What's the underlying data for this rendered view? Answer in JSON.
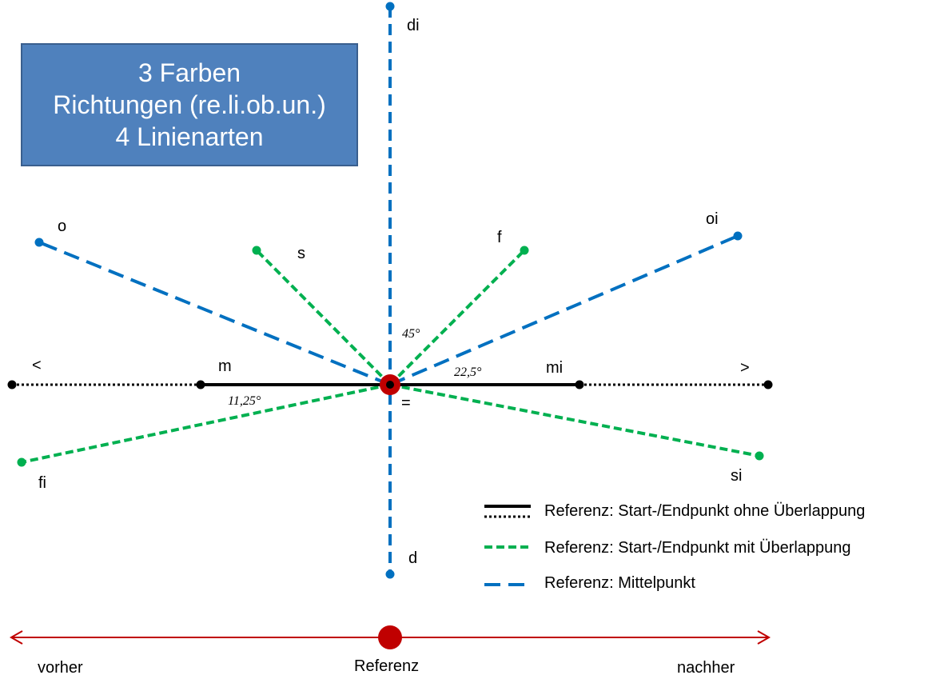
{
  "colors": {
    "blue": "#0070c0",
    "green": "#00b050",
    "black": "#000000",
    "red": "#c00000",
    "box_fill": "#4f81bd",
    "box_border": "#3a5f8e"
  },
  "title_box": {
    "line1": "3 Farben",
    "line2": "Richtungen (re.li.ob.un.)",
    "line3": "4 Linienarten"
  },
  "relations": {
    "di": "di",
    "d": "d",
    "o": "o",
    "oi": "oi",
    "s": "s",
    "f": "f",
    "fi": "fi",
    "si": "si",
    "m": "m",
    "mi": "mi",
    "lt": "<",
    "gt": ">",
    "eq": "="
  },
  "angles": {
    "a45": "45°",
    "a22": "22,5°",
    "a11": "11,25°"
  },
  "legend": {
    "item1": "Referenz: Start-/Endpunkt ohne Überlappung",
    "item2": "Referenz: Start-/Endpunkt mit Überlappung",
    "item3": "Referenz: Mittelpunkt"
  },
  "timeline": {
    "left": "vorher",
    "center": "Referenz",
    "right": "nachher"
  }
}
